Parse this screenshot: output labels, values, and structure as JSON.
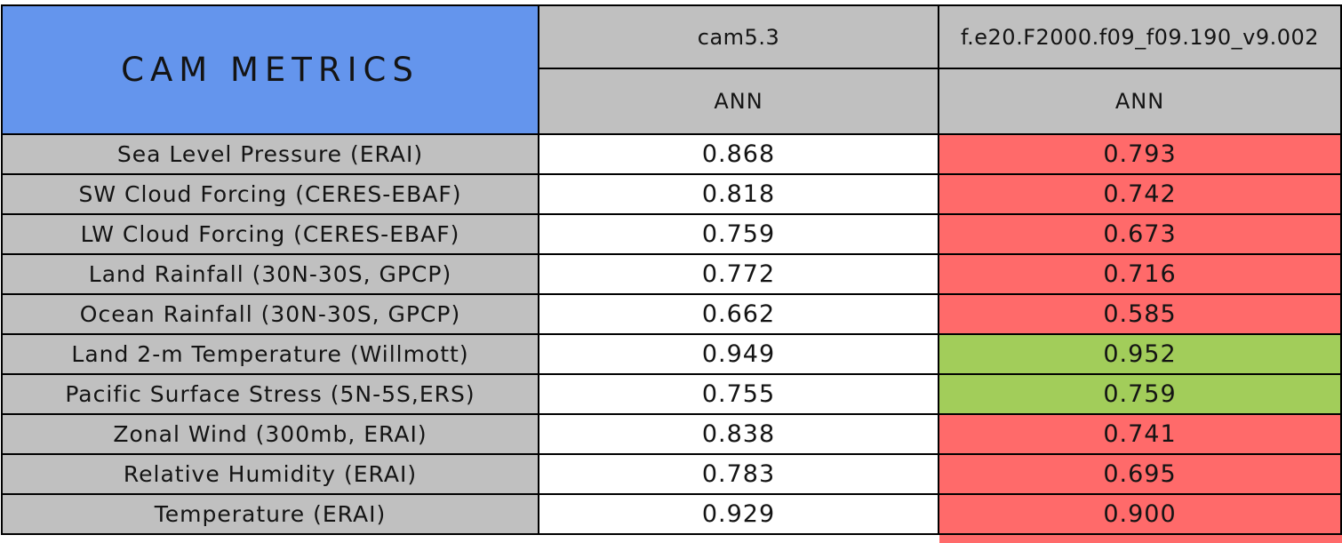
{
  "chart_data": {
    "type": "table",
    "corner_title": "CAM METRICS",
    "columns": [
      {
        "model": "cam5.3",
        "season": "ANN"
      },
      {
        "model": "f.e20.F2000.f09_f09.190_v9.002",
        "season": "ANN"
      }
    ],
    "rows": [
      {
        "metric": "Sea Level Pressure (ERAI)",
        "values": [
          "0.868",
          "0.793"
        ],
        "highlight": "red"
      },
      {
        "metric": "SW Cloud Forcing (CERES-EBAF)",
        "values": [
          "0.818",
          "0.742"
        ],
        "highlight": "red"
      },
      {
        "metric": "LW Cloud Forcing (CERES-EBAF)",
        "values": [
          "0.759",
          "0.673"
        ],
        "highlight": "red"
      },
      {
        "metric": "Land Rainfall (30N-30S, GPCP)",
        "values": [
          "0.772",
          "0.716"
        ],
        "highlight": "red"
      },
      {
        "metric": "Ocean Rainfall (30N-30S, GPCP)",
        "values": [
          "0.662",
          "0.585"
        ],
        "highlight": "red"
      },
      {
        "metric": "Land 2-m Temperature (Willmott)",
        "values": [
          "0.949",
          "0.952"
        ],
        "highlight": "green"
      },
      {
        "metric": "Pacific Surface Stress (5N-5S,ERS)",
        "values": [
          "0.755",
          "0.759"
        ],
        "highlight": "green"
      },
      {
        "metric": "Zonal Wind (300mb, ERAI)",
        "values": [
          "0.838",
          "0.741"
        ],
        "highlight": "red"
      },
      {
        "metric": "Relative Humidity (ERAI)",
        "values": [
          "0.783",
          "0.695"
        ],
        "highlight": "red"
      },
      {
        "metric": "Temperature (ERAI)",
        "values": [
          "0.929",
          "0.900"
        ],
        "highlight": "red"
      }
    ]
  },
  "colors": {
    "corner_blue": "#6495ED",
    "header_gray": "#C0C0C0",
    "value_white": "#FFFFFF",
    "worse_red": "#FF6A6A",
    "better_green": "#A2CD5A",
    "border_black": "#000000",
    "text_black": "#141414"
  }
}
